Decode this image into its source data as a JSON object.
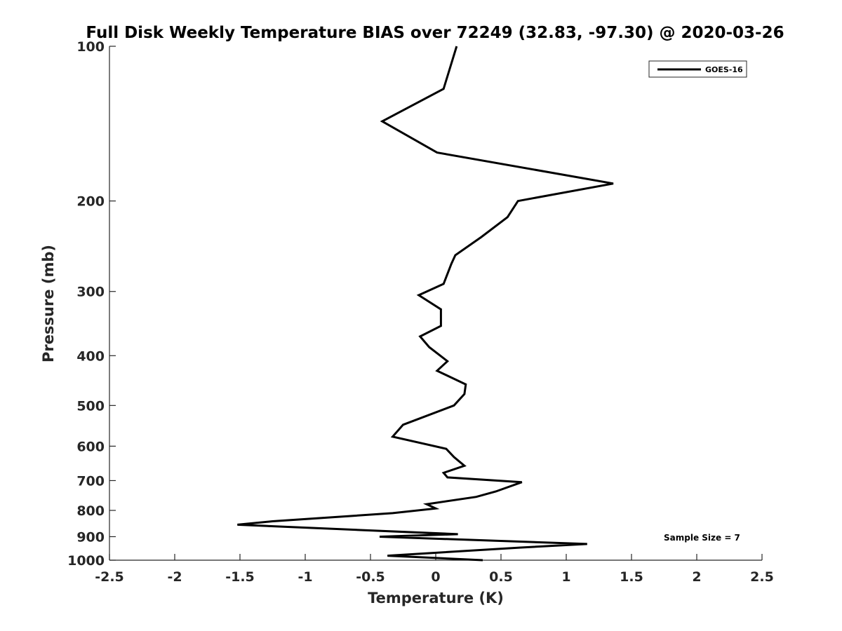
{
  "chart_data": {
    "type": "line",
    "title": "Full Disk Weekly Temperature BIAS over 72249 (32.83, -97.30) @ 2020-03-26",
    "xlabel": "Temperature (K)",
    "ylabel": "Pressure (mb)",
    "xlim": [
      -2.5,
      2.5
    ],
    "ylim": [
      100,
      1000
    ],
    "y_scale": "log",
    "y_reversed": true,
    "x_ticks": [
      -2.5,
      -2,
      -1.5,
      -1,
      -0.5,
      0,
      0.5,
      1,
      1.5,
      2,
      2.5
    ],
    "x_tick_labels": [
      "-2.5",
      "-2",
      "-1.5",
      "-1",
      "-0.5",
      "0",
      "0.5",
      "1",
      "1.5",
      "2",
      "2.5"
    ],
    "y_ticks": [
      100,
      200,
      300,
      400,
      500,
      600,
      700,
      800,
      900,
      1000
    ],
    "y_tick_labels": [
      "100",
      "200",
      "300",
      "400",
      "500",
      "600",
      "700",
      "800",
      "900",
      "1000"
    ],
    "grid": false,
    "legend_position": "top-right",
    "line_color": "#000000",
    "annotation": "Sample Size = 7",
    "series": [
      {
        "name": "GOES-16",
        "x": [
          0.16,
          0.06,
          -0.41,
          0.01,
          1.36,
          0.63,
          0.55,
          0.35,
          0.15,
          0.12,
          0.06,
          -0.13,
          0.04,
          0.04,
          -0.12,
          -0.05,
          0.09,
          0.01,
          0.23,
          0.22,
          0.14,
          -0.25,
          -0.33,
          0.08,
          0.14,
          0.22,
          0.06,
          0.09,
          0.66,
          0.46,
          0.31,
          -0.07,
          0.0,
          -0.33,
          -1.25,
          -1.52,
          0.17,
          -0.43,
          1.16,
          0.65,
          -0.37,
          0.36
        ],
        "y": [
          100,
          121,
          140,
          161,
          185,
          200,
          215,
          235,
          255,
          265,
          290,
          305,
          325,
          350,
          367,
          385,
          410,
          428,
          455,
          475,
          500,
          545,
          575,
          607,
          630,
          655,
          676,
          690,
          705,
          735,
          753,
          778,
          793,
          810,
          840,
          853,
          890,
          900,
          930,
          945,
          980,
          1000
        ]
      }
    ]
  }
}
